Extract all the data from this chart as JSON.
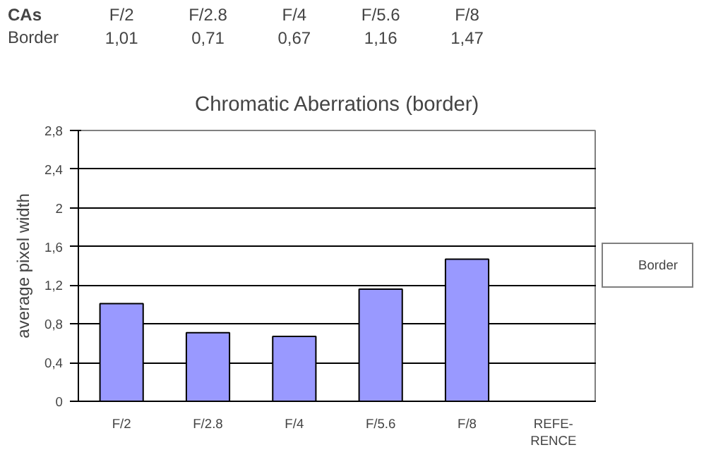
{
  "chart_data": {
    "type": "bar",
    "title": "Chromatic Aberrations (border)",
    "ylabel": "average pixel width",
    "annotations": [
      "CAs"
    ],
    "categories": [
      "F/2",
      "F/2.8",
      "F/4",
      "F/5.6",
      "F/8",
      "REFE-\nRENCE"
    ],
    "series": [
      {
        "name": "Border",
        "color": "#9999ff",
        "values": [
          1.01,
          0.71,
          0.67,
          1.16,
          1.47,
          null
        ],
        "value_labels": [
          "1,01",
          "0,71",
          "0,67",
          "1,16",
          "1,47",
          null
        ]
      }
    ],
    "ylim": [
      0,
      2.8
    ],
    "yticks": [
      0,
      {
        "value": 0.4,
        "label": "0,4"
      },
      {
        "value": 0.8,
        "label": "0,8"
      },
      {
        "value": 1.2,
        "label": "1,2"
      },
      {
        "value": 1.6,
        "label": "1,6"
      },
      2,
      {
        "value": 2.4,
        "label": "2,4"
      },
      {
        "value": 2.8,
        "label": "2,8"
      }
    ],
    "grid": "y",
    "legend": "right"
  }
}
